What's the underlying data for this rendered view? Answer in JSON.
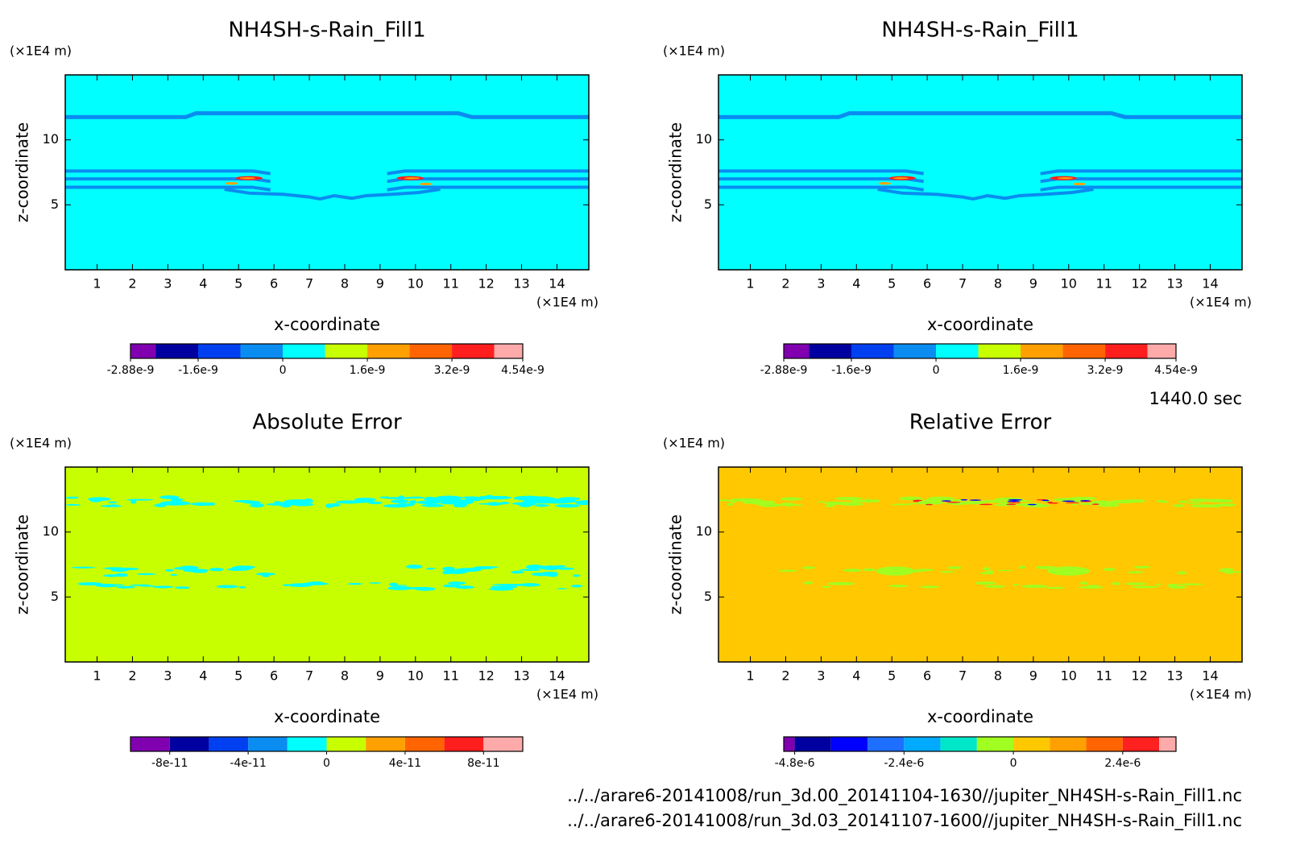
{
  "chart_data": [
    {
      "type": "contour",
      "title": "NH4SH-s-Rain_Fill1",
      "xlabel": "x-coordinate",
      "ylabel": "z-coordinate",
      "x_unit": "(×1E4 m)",
      "y_unit": "(×1E4 m)",
      "xlim": [
        0.1,
        14.9
      ],
      "ylim": [
        0,
        15
      ],
      "xticks": [
        1,
        2,
        3,
        4,
        5,
        6,
        7,
        8,
        9,
        10,
        11,
        12,
        13,
        14
      ],
      "yticks": [
        5,
        10
      ],
      "clim": [
        -2.88e-09,
        4.54e-09
      ],
      "levels": [
        -2.4e-09,
        -1.6e-09,
        -8e-10,
        0,
        8e-10,
        1.6e-09,
        2.4e-09,
        3.2e-09,
        4e-09
      ],
      "colors": [
        "#8000b0",
        "#0000a0",
        "#0040f0",
        "#0a8cf0",
        "#00ffff",
        "#c8ff00",
        "#ffa000",
        "#ff6400",
        "#ff1e1e",
        "#ffaaaa"
      ],
      "cticks": [
        -2.88e-09,
        -1.6e-09,
        0,
        1.6e-09,
        3.2e-09,
        4.54e-09
      ]
    },
    {
      "type": "contour",
      "title": "NH4SH-s-Rain_Fill1",
      "xlabel": "x-coordinate",
      "ylabel": "z-coordinate",
      "x_unit": "(×1E4 m)",
      "y_unit": "(×1E4 m)",
      "xlim": [
        0.1,
        14.9
      ],
      "ylim": [
        0,
        15
      ],
      "xticks": [
        1,
        2,
        3,
        4,
        5,
        6,
        7,
        8,
        9,
        10,
        11,
        12,
        13,
        14
      ],
      "yticks": [
        5,
        10
      ],
      "clim": [
        -2.88e-09,
        4.54e-09
      ],
      "levels": [
        -2.4e-09,
        -1.6e-09,
        -8e-10,
        0,
        8e-10,
        1.6e-09,
        2.4e-09,
        3.2e-09,
        4e-09
      ],
      "colors": [
        "#8000b0",
        "#0000a0",
        "#0040f0",
        "#0a8cf0",
        "#00ffff",
        "#c8ff00",
        "#ffa000",
        "#ff6400",
        "#ff1e1e",
        "#ffaaaa"
      ],
      "cticks": [
        -2.88e-09,
        -1.6e-09,
        0,
        1.6e-09,
        3.2e-09,
        4.54e-09
      ]
    },
    {
      "type": "contour",
      "title": "Absolute Error",
      "xlabel": "x-coordinate",
      "ylabel": "z-coordinate",
      "x_unit": "(×1E4 m)",
      "y_unit": "(×1E4 m)",
      "xlim": [
        0.1,
        14.9
      ],
      "ylim": [
        0,
        15
      ],
      "xticks": [
        1,
        2,
        3,
        4,
        5,
        6,
        7,
        8,
        9,
        10,
        11,
        12,
        13,
        14
      ],
      "yticks": [
        5,
        10
      ],
      "clim": [
        -1e-10,
        1e-10
      ],
      "levels": [
        -8e-11,
        -6e-11,
        -4e-11,
        -2e-11,
        0,
        2e-11,
        4e-11,
        6e-11,
        8e-11
      ],
      "colors": [
        "#8000b0",
        "#0000a0",
        "#0040f0",
        "#0a8cf0",
        "#00ffff",
        "#c8ff00",
        "#ffa000",
        "#ff6400",
        "#ff1e1e",
        "#ffaaaa"
      ],
      "cticks": [
        -8e-11,
        -4e-11,
        0,
        4e-11,
        8e-11
      ]
    },
    {
      "type": "contour",
      "title": "Relative Error",
      "xlabel": "x-coordinate",
      "ylabel": "z-coordinate",
      "x_unit": "(×1E4 m)",
      "y_unit": "(×1E4 m)",
      "xlim": [
        0.1,
        14.9
      ],
      "ylim": [
        0,
        15
      ],
      "xticks": [
        1,
        2,
        3,
        4,
        5,
        6,
        7,
        8,
        9,
        10,
        11,
        12,
        13,
        14
      ],
      "yticks": [
        5,
        10
      ],
      "clim": [
        -5.04e-06,
        3.57e-06
      ],
      "levels": [
        -4.8e-06,
        -4e-06,
        -3.2e-06,
        -2.4e-06,
        -1.6e-06,
        -8e-07,
        0,
        8e-07,
        1.6e-06,
        2.4e-06,
        3.2e-06
      ],
      "colors": [
        "#8000b0",
        "#0000a0",
        "#0000ff",
        "#1e6eff",
        "#00aaff",
        "#00e6c8",
        "#a0ff20",
        "#ffc800",
        "#ffa000",
        "#ff6400",
        "#ff2020",
        "#ffaaaa"
      ],
      "cticks": [
        {
          "value": -4.8e-06,
          "label": "-4.8e-6"
        },
        {
          "value": -2.4e-06,
          "label": "-2.4e-6"
        },
        0,
        {
          "value": 2.4e-06,
          "label": "2.4e-6"
        }
      ]
    }
  ],
  "time_label": "1440.0 sec",
  "files": [
    "../../arare6-20141008/run_3d.00_20141104-1630//jupiter_NH4SH-s-Rain_Fill1.nc",
    "../../arare6-20141008/run_3d.03_20141107-1600//jupiter_NH4SH-s-Rain_Fill1.nc"
  ]
}
